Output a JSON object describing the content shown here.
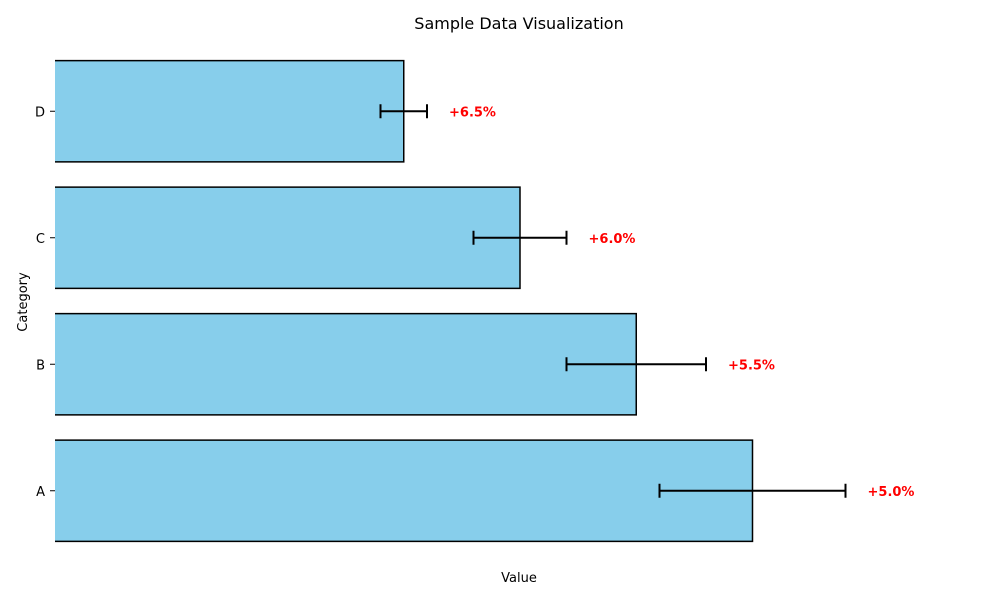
{
  "chart_data": {
    "type": "bar",
    "orientation": "horizontal",
    "title": "Sample Data Visualization",
    "xlabel": "Value",
    "ylabel": "Category",
    "categories": [
      "A",
      "B",
      "C",
      "D"
    ],
    "values": [
      150,
      125,
      100,
      75
    ],
    "errors": [
      20,
      15,
      10,
      5
    ],
    "annotations": [
      "+5.0%",
      "+5.5%",
      "+6.0%",
      "+6.5%"
    ],
    "xlim": [
      0,
      200
    ],
    "bar_color": "#87CEEB",
    "edge_color": "#000000",
    "annotation_color": "#FF0000",
    "grid": false
  }
}
